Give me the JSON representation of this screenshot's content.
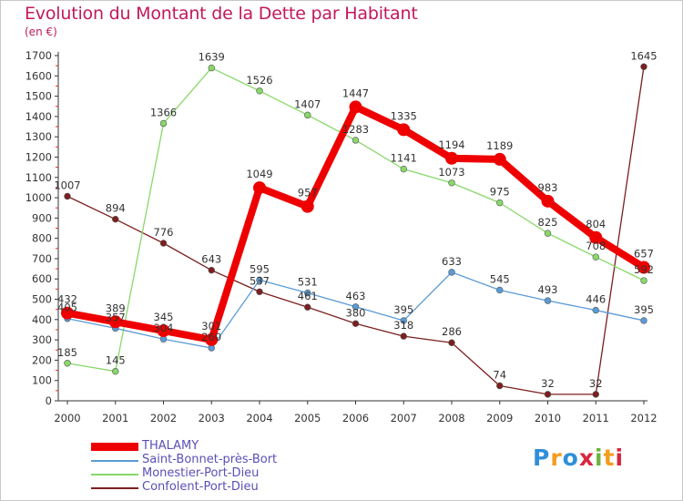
{
  "header": {
    "title": "Evolution du Montant de la Dette par Habitant",
    "subtitle": "(en €)"
  },
  "logo": {
    "text": "Proxiti",
    "colors": [
      "#2f8fd8",
      "#f39c1e",
      "#2f8fd8",
      "#d9263f",
      "#6cb33f",
      "#f39c1e",
      "#d9263f"
    ]
  },
  "chart_data": {
    "type": "line",
    "title": "Evolution du Montant de la Dette par Habitant",
    "subtitle": "(en €)",
    "xlabel": "",
    "ylabel": "",
    "x": [
      "2000",
      "2001",
      "2002",
      "2003",
      "2004",
      "2005",
      "2006",
      "2007",
      "2008",
      "2009",
      "2010",
      "2011",
      "2012"
    ],
    "ylim": [
      0,
      1700
    ],
    "yticks": [
      0,
      100,
      200,
      300,
      400,
      500,
      600,
      700,
      800,
      900,
      1000,
      1100,
      1200,
      1300,
      1400,
      1500,
      1600,
      1700
    ],
    "grid": false,
    "legend_position": "bottom-left",
    "series": [
      {
        "name": "Confolent-Port-Dieu",
        "color": "#7b1f1f",
        "highlight": false,
        "values": [
          1007,
          894,
          776,
          643,
          537,
          461,
          380,
          318,
          286,
          74,
          32,
          32,
          1645
        ]
      },
      {
        "name": "Monestier-Port-Dieu",
        "color": "#88d86a",
        "highlight": false,
        "values": [
          185,
          145,
          1366,
          1639,
          1526,
          1407,
          1283,
          1141,
          1073,
          975,
          825,
          708,
          592
        ]
      },
      {
        "name": "Saint-Bonnet-près-Bort",
        "color": "#5b9bd5",
        "highlight": false,
        "values": [
          405,
          357,
          304,
          260,
          595,
          531,
          463,
          395,
          633,
          545,
          493,
          446,
          395
        ]
      },
      {
        "name": "THALAMY",
        "color": "#ee0000",
        "highlight": true,
        "values": [
          432,
          389,
          345,
          301,
          1049,
          957,
          1447,
          1335,
          1194,
          1189,
          983,
          804,
          657
        ]
      }
    ],
    "legend": [
      "THALAMY",
      "Saint-Bonnet-près-Bort",
      "Monestier-Port-Dieu",
      "Confolent-Port-Dieu"
    ]
  }
}
